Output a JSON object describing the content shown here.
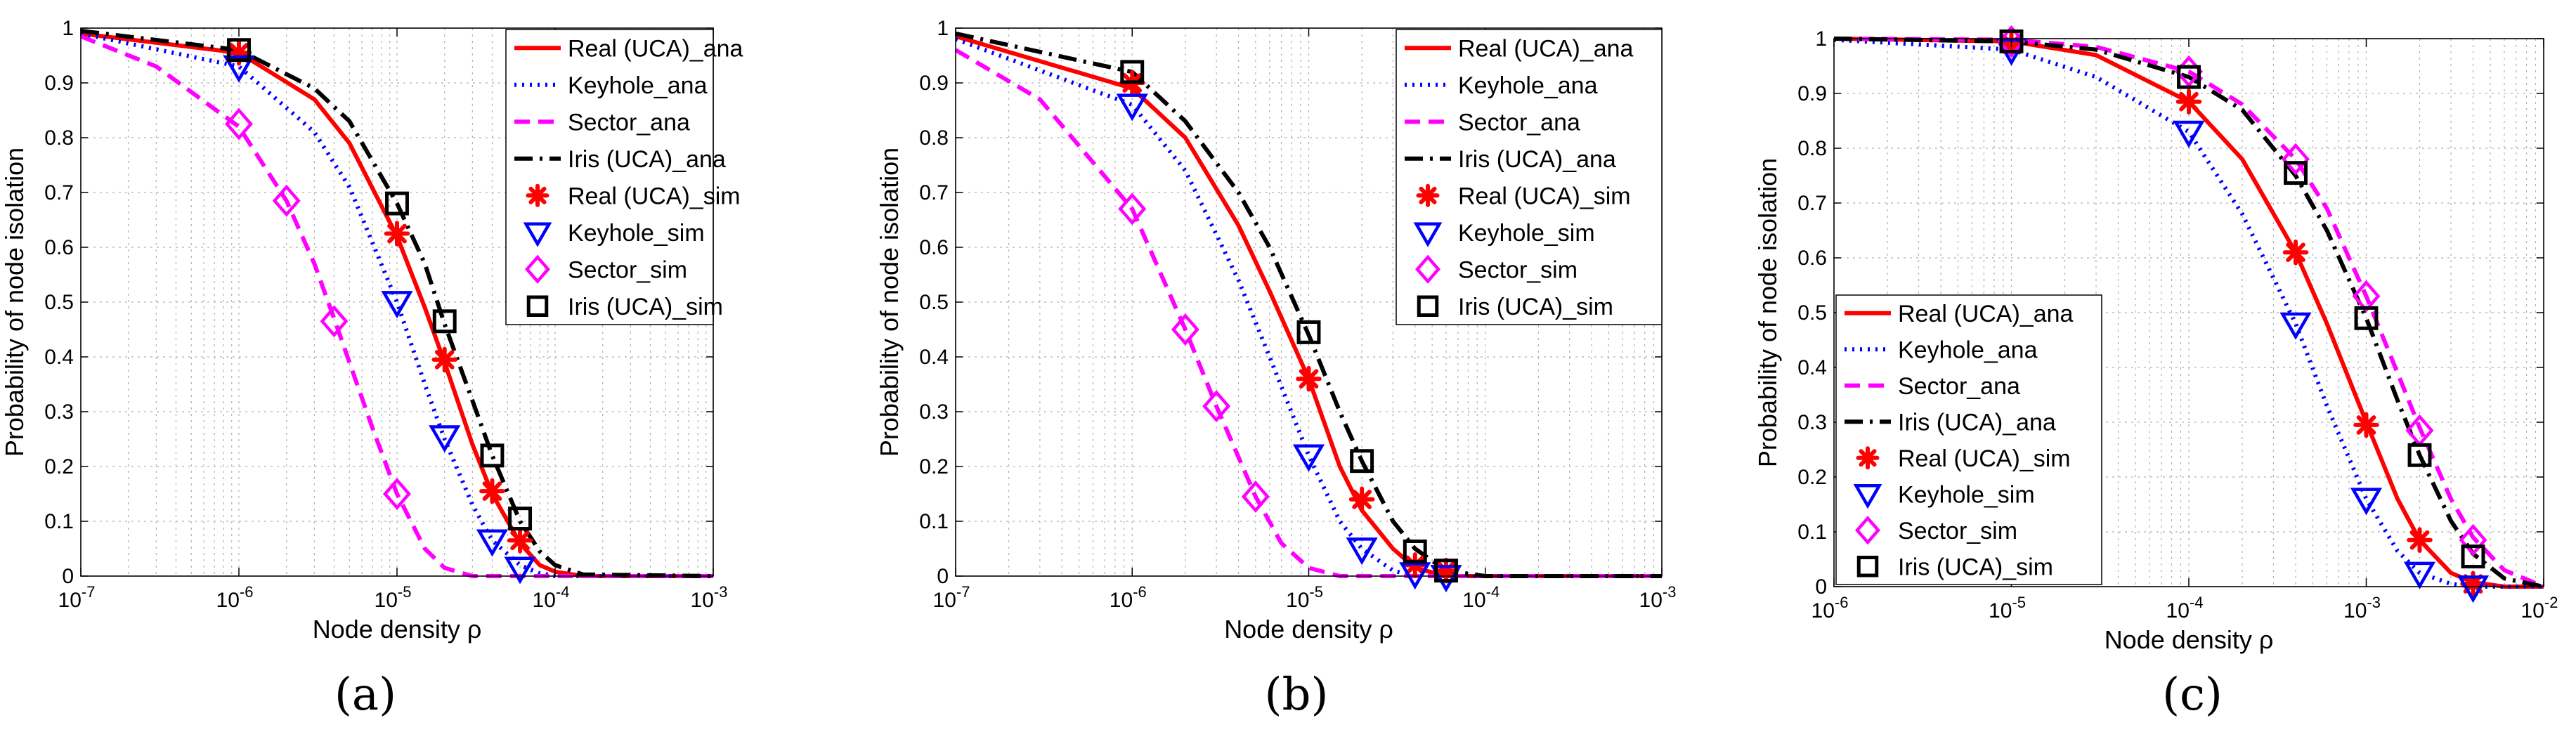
{
  "colors": {
    "red": "#ff0000",
    "blue": "#0000ff",
    "magenta": "#ff00ff",
    "black": "#000000"
  },
  "chart_data": [
    {
      "id": "a",
      "type": "line",
      "caption": "(a)",
      "xlabel": "Node density ρ",
      "ylabel": "Probability of node isolation",
      "xscale": "log",
      "xlim_exp": [
        -7,
        -3
      ],
      "xtick_exps": [
        "-7",
        "-6",
        "-5",
        "-4",
        "-3"
      ],
      "ylim": [
        0,
        1
      ],
      "yticks": [
        "0",
        "0.1",
        "0.2",
        "0.3",
        "0.4",
        "0.5",
        "0.6",
        "0.7",
        "0.8",
        "0.9",
        "1"
      ],
      "grid": true,
      "legend_position": "top-right",
      "series": [
        {
          "name": "Real (UCA)_ana",
          "color": "#ff0000",
          "dash": "solid",
          "kind": "line",
          "x": [
            1e-07,
            1e-06,
            3e-06,
            5e-06,
            1e-05,
            1.5e-05,
            2e-05,
            3e-05,
            4e-05,
            6e-05,
            8e-05,
            0.0001,
            0.00015,
            0.001
          ],
          "y": [
            0.99,
            0.955,
            0.87,
            0.79,
            0.62,
            0.49,
            0.39,
            0.24,
            0.15,
            0.06,
            0.02,
            0.008,
            0.0,
            0.0
          ]
        },
        {
          "name": "Keyhole_ana",
          "color": "#0000ff",
          "dash": "dot",
          "kind": "line",
          "x": [
            1e-07,
            1e-06,
            3e-06,
            5e-06,
            1e-05,
            1.5e-05,
            2e-05,
            3e-05,
            4e-05,
            6e-05,
            8e-05,
            0.0001,
            0.001
          ],
          "y": [
            0.99,
            0.93,
            0.81,
            0.71,
            0.5,
            0.35,
            0.25,
            0.13,
            0.065,
            0.02,
            0.005,
            0.0,
            0.0
          ]
        },
        {
          "name": "Sector_ana",
          "color": "#ff00ff",
          "dash": "dash",
          "kind": "line",
          "x": [
            1e-07,
            3e-07,
            1e-06,
            2e-06,
            3e-06,
            4e-06,
            5e-06,
            7e-06,
            1e-05,
            1.5e-05,
            2e-05,
            3e-05,
            0.001
          ],
          "y": [
            0.985,
            0.93,
            0.82,
            0.685,
            0.57,
            0.47,
            0.39,
            0.27,
            0.15,
            0.05,
            0.015,
            0.0,
            0.0
          ]
        },
        {
          "name": "Iris (UCA)_ana",
          "color": "#000000",
          "dash": "dashdot",
          "kind": "line",
          "x": [
            1e-07,
            1e-06,
            3e-06,
            5e-06,
            1e-05,
            1.5e-05,
            2e-05,
            3e-05,
            4e-05,
            6e-05,
            8e-05,
            0.0001,
            0.00015,
            0.001
          ],
          "y": [
            0.995,
            0.96,
            0.89,
            0.83,
            0.68,
            0.57,
            0.46,
            0.32,
            0.22,
            0.1,
            0.045,
            0.02,
            0.003,
            0.0
          ]
        },
        {
          "name": "Real (UCA)_sim",
          "color": "#ff0000",
          "kind": "marker",
          "marker": "star",
          "x": [
            1e-06,
            1e-05,
            2e-05,
            4e-05,
            6e-05
          ],
          "y": [
            0.955,
            0.625,
            0.395,
            0.155,
            0.065
          ]
        },
        {
          "name": "Keyhole_sim",
          "color": "#0000ff",
          "kind": "marker",
          "marker": "triangle",
          "x": [
            1e-06,
            1e-05,
            2e-05,
            4e-05,
            6e-05
          ],
          "y": [
            0.93,
            0.5,
            0.255,
            0.065,
            0.015
          ]
        },
        {
          "name": "Sector_sim",
          "color": "#ff00ff",
          "kind": "marker",
          "marker": "diamond",
          "x": [
            1e-06,
            2e-06,
            4e-06,
            1e-05
          ],
          "y": [
            0.825,
            0.685,
            0.465,
            0.15
          ]
        },
        {
          "name": "Iris (UCA)_sim",
          "color": "#000000",
          "kind": "marker",
          "marker": "square",
          "x": [
            1e-06,
            1e-05,
            2e-05,
            4e-05,
            6e-05
          ],
          "y": [
            0.96,
            0.68,
            0.465,
            0.22,
            0.105
          ]
        }
      ]
    },
    {
      "id": "b",
      "type": "line",
      "caption": "(b)",
      "xlabel": "Node density ρ",
      "ylabel": "Probability of node isolation",
      "xscale": "log",
      "xlim_exp": [
        -7,
        -3
      ],
      "xtick_exps": [
        "-7",
        "-6",
        "-5",
        "-4",
        "-3"
      ],
      "ylim": [
        0,
        1
      ],
      "yticks": [
        "0",
        "0.1",
        "0.2",
        "0.3",
        "0.4",
        "0.5",
        "0.6",
        "0.7",
        "0.8",
        "0.9",
        "1"
      ],
      "grid": true,
      "legend_position": "top-right",
      "series": [
        {
          "name": "Real (UCA)_ana",
          "color": "#ff0000",
          "dash": "solid",
          "kind": "line",
          "x": [
            1e-07,
            1e-06,
            2e-06,
            4e-06,
            6e-06,
            1e-05,
            1.5e-05,
            2e-05,
            3e-05,
            4e-05,
            6e-05,
            0.001
          ],
          "y": [
            0.985,
            0.89,
            0.8,
            0.64,
            0.52,
            0.36,
            0.2,
            0.12,
            0.05,
            0.015,
            0.0,
            0.0
          ]
        },
        {
          "name": "Keyhole_ana",
          "color": "#0000ff",
          "dash": "dot",
          "kind": "line",
          "x": [
            1e-07,
            1e-06,
            2e-06,
            4e-06,
            6e-06,
            1e-05,
            1.5e-05,
            2e-05,
            3e-05,
            4e-05,
            0.001
          ],
          "y": [
            0.98,
            0.86,
            0.74,
            0.54,
            0.4,
            0.22,
            0.1,
            0.05,
            0.01,
            0.0,
            0.0
          ]
        },
        {
          "name": "Sector_ana",
          "color": "#ff00ff",
          "dash": "dash",
          "kind": "line",
          "x": [
            1e-07,
            3e-07,
            1e-06,
            2e-06,
            3e-06,
            5e-06,
            7e-06,
            1e-05,
            1.5e-05,
            0.001
          ],
          "y": [
            0.96,
            0.87,
            0.67,
            0.45,
            0.31,
            0.145,
            0.06,
            0.015,
            0.0,
            0.0
          ]
        },
        {
          "name": "Iris (UCA)_ana",
          "color": "#000000",
          "dash": "dashdot",
          "kind": "line",
          "x": [
            1e-07,
            1e-06,
            2e-06,
            4e-06,
            6e-06,
            1e-05,
            1.5e-05,
            2e-05,
            3e-05,
            4e-05,
            6e-05,
            0.0001,
            0.001
          ],
          "y": [
            0.99,
            0.92,
            0.83,
            0.7,
            0.6,
            0.44,
            0.3,
            0.21,
            0.1,
            0.05,
            0.01,
            0.0,
            0.0
          ]
        },
        {
          "name": "Real (UCA)_sim",
          "color": "#ff0000",
          "kind": "marker",
          "marker": "star",
          "x": [
            1e-06,
            1e-05,
            2e-05,
            4e-05,
            6e-05
          ],
          "y": [
            0.9,
            0.36,
            0.14,
            0.02,
            0.01
          ]
        },
        {
          "name": "Keyhole_sim",
          "color": "#0000ff",
          "kind": "marker",
          "marker": "triangle",
          "x": [
            1e-06,
            1e-05,
            2e-05,
            4e-05,
            6e-05
          ],
          "y": [
            0.86,
            0.22,
            0.05,
            0.005,
            0.0
          ]
        },
        {
          "name": "Sector_sim",
          "color": "#ff00ff",
          "kind": "marker",
          "marker": "diamond",
          "x": [
            1e-06,
            2e-06,
            3e-06,
            5e-06
          ],
          "y": [
            0.67,
            0.45,
            0.31,
            0.145
          ]
        },
        {
          "name": "Iris (UCA)_sim",
          "color": "#000000",
          "kind": "marker",
          "marker": "square",
          "x": [
            1e-06,
            1e-05,
            2e-05,
            4e-05,
            6e-05
          ],
          "y": [
            0.92,
            0.445,
            0.21,
            0.045,
            0.01
          ]
        }
      ]
    },
    {
      "id": "c",
      "type": "line",
      "caption": "(c)",
      "xlabel": "Node density ρ",
      "ylabel": "Probability of node isolation",
      "xscale": "log",
      "xlim_exp": [
        -6,
        -2
      ],
      "xtick_exps": [
        "-6",
        "-5",
        "-4",
        "-3",
        "-2"
      ],
      "ylim": [
        0,
        1
      ],
      "yticks": [
        "0",
        "0.1",
        "0.2",
        "0.3",
        "0.4",
        "0.5",
        "0.6",
        "0.7",
        "0.8",
        "0.9",
        "1"
      ],
      "grid": true,
      "legend_position": "bottom-left",
      "series": [
        {
          "name": "Real (UCA)_ana",
          "color": "#ff0000",
          "dash": "solid",
          "kind": "line",
          "x": [
            1e-06,
            1e-05,
            3e-05,
            0.0001,
            0.0002,
            0.0004,
            0.0006,
            0.001,
            0.0015,
            0.002,
            0.003,
            0.004,
            0.006,
            0.01
          ],
          "y": [
            1.0,
            0.995,
            0.97,
            0.885,
            0.78,
            0.61,
            0.48,
            0.3,
            0.16,
            0.085,
            0.025,
            0.008,
            0.0,
            0.0
          ]
        },
        {
          "name": "Keyhole_ana",
          "color": "#0000ff",
          "dash": "dot",
          "kind": "line",
          "x": [
            1e-06,
            1e-05,
            3e-05,
            0.0001,
            0.0002,
            0.0004,
            0.0006,
            0.001,
            0.0015,
            0.002,
            0.003,
            0.004,
            0.01
          ],
          "y": [
            0.998,
            0.98,
            0.93,
            0.83,
            0.68,
            0.48,
            0.33,
            0.16,
            0.065,
            0.025,
            0.005,
            0.0,
            0.0
          ]
        },
        {
          "name": "Sector_ana",
          "color": "#ff00ff",
          "dash": "dash",
          "kind": "line",
          "x": [
            1e-06,
            1e-05,
            3e-05,
            0.0001,
            0.0002,
            0.0004,
            0.0006,
            0.001,
            0.0015,
            0.002,
            0.003,
            0.004,
            0.006,
            0.01
          ],
          "y": [
            1.0,
            0.998,
            0.985,
            0.94,
            0.88,
            0.78,
            0.69,
            0.53,
            0.39,
            0.29,
            0.16,
            0.09,
            0.03,
            0.0
          ]
        },
        {
          "name": "Iris (UCA)_ana",
          "color": "#000000",
          "dash": "dashdot",
          "kind": "line",
          "x": [
            1e-06,
            1e-05,
            3e-05,
            0.0001,
            0.0002,
            0.0004,
            0.0006,
            0.001,
            0.0015,
            0.002,
            0.003,
            0.004,
            0.006,
            0.01
          ],
          "y": [
            1.0,
            0.995,
            0.98,
            0.93,
            0.87,
            0.75,
            0.65,
            0.49,
            0.34,
            0.24,
            0.12,
            0.06,
            0.015,
            0.0
          ]
        },
        {
          "name": "Real (UCA)_sim",
          "color": "#ff0000",
          "kind": "marker",
          "marker": "star",
          "x": [
            1e-05,
            0.0001,
            0.0004,
            0.001,
            0.002,
            0.004
          ],
          "y": [
            0.99,
            0.885,
            0.61,
            0.295,
            0.085,
            0.005
          ]
        },
        {
          "name": "Keyhole_sim",
          "color": "#0000ff",
          "kind": "marker",
          "marker": "triangle",
          "x": [
            1e-05,
            0.0001,
            0.0004,
            0.001,
            0.002,
            0.004
          ],
          "y": [
            0.98,
            0.83,
            0.48,
            0.16,
            0.025,
            0.0
          ]
        },
        {
          "name": "Sector_sim",
          "color": "#ff00ff",
          "kind": "marker",
          "marker": "diamond",
          "x": [
            1e-05,
            0.0001,
            0.0004,
            0.001,
            0.002,
            0.004
          ],
          "y": [
            0.995,
            0.94,
            0.78,
            0.53,
            0.285,
            0.085
          ]
        },
        {
          "name": "Iris (UCA)_sim",
          "color": "#000000",
          "kind": "marker",
          "marker": "square",
          "x": [
            1e-05,
            0.0001,
            0.0004,
            0.001,
            0.002,
            0.004
          ],
          "y": [
            0.995,
            0.93,
            0.755,
            0.49,
            0.24,
            0.055
          ]
        }
      ]
    }
  ]
}
